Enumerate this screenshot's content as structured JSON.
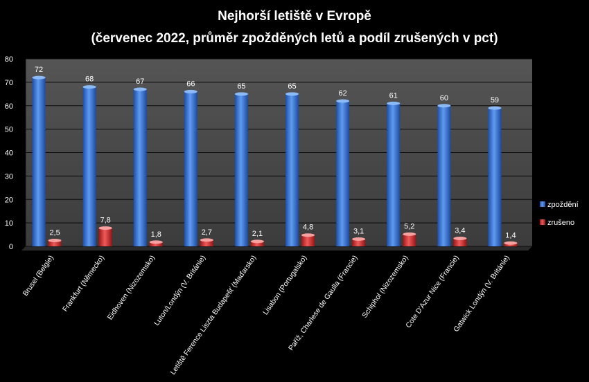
{
  "chart_data": {
    "type": "bar",
    "title": "Nejhorší letiště v Evropě",
    "subtitle": "(červenec 2022, průměr zpožděných letů a podíl zrušených v pct)",
    "categories": [
      "Brusel (Belgie)",
      "Frankfurt (Německo)",
      "Eidhoven (Nizozemsko)",
      "Luton/Londýn (V. Británie)",
      "Letiště Ference Liszta Budapešť (Maďarsko)",
      "Lisabon (Portugalsko)",
      "Paříž, Charlese de Gaulla (Francie)",
      "Schiphol (Nizozemsko)",
      "Cote D'Azur Nice (Francie)",
      "Gatwick Londýn (V. Británie)"
    ],
    "series": [
      {
        "name": "zpoždění",
        "color": "#2f6fd6",
        "values": [
          72,
          68,
          67,
          66,
          65,
          65,
          62,
          61,
          60,
          59
        ],
        "labels": [
          "72",
          "68",
          "67",
          "66",
          "65",
          "65",
          "62",
          "61",
          "60",
          "59"
        ]
      },
      {
        "name": "zrušeno",
        "color": "#d22b2b",
        "values": [
          2.5,
          7.8,
          1.8,
          2.7,
          2.1,
          4.8,
          3.1,
          5.2,
          3.4,
          1.4
        ],
        "labels": [
          "2,5",
          "7,8",
          "1,8",
          "2,7",
          "2,1",
          "4,8",
          "3,1",
          "5,2",
          "3,4",
          "1,4"
        ]
      }
    ],
    "yticks": [
      "0",
      "10",
      "20",
      "30",
      "40",
      "50",
      "60",
      "70",
      "80"
    ],
    "ylim": [
      0,
      80
    ],
    "grid": true,
    "legend_position": "right",
    "plot_background": "#4a4a4a"
  }
}
